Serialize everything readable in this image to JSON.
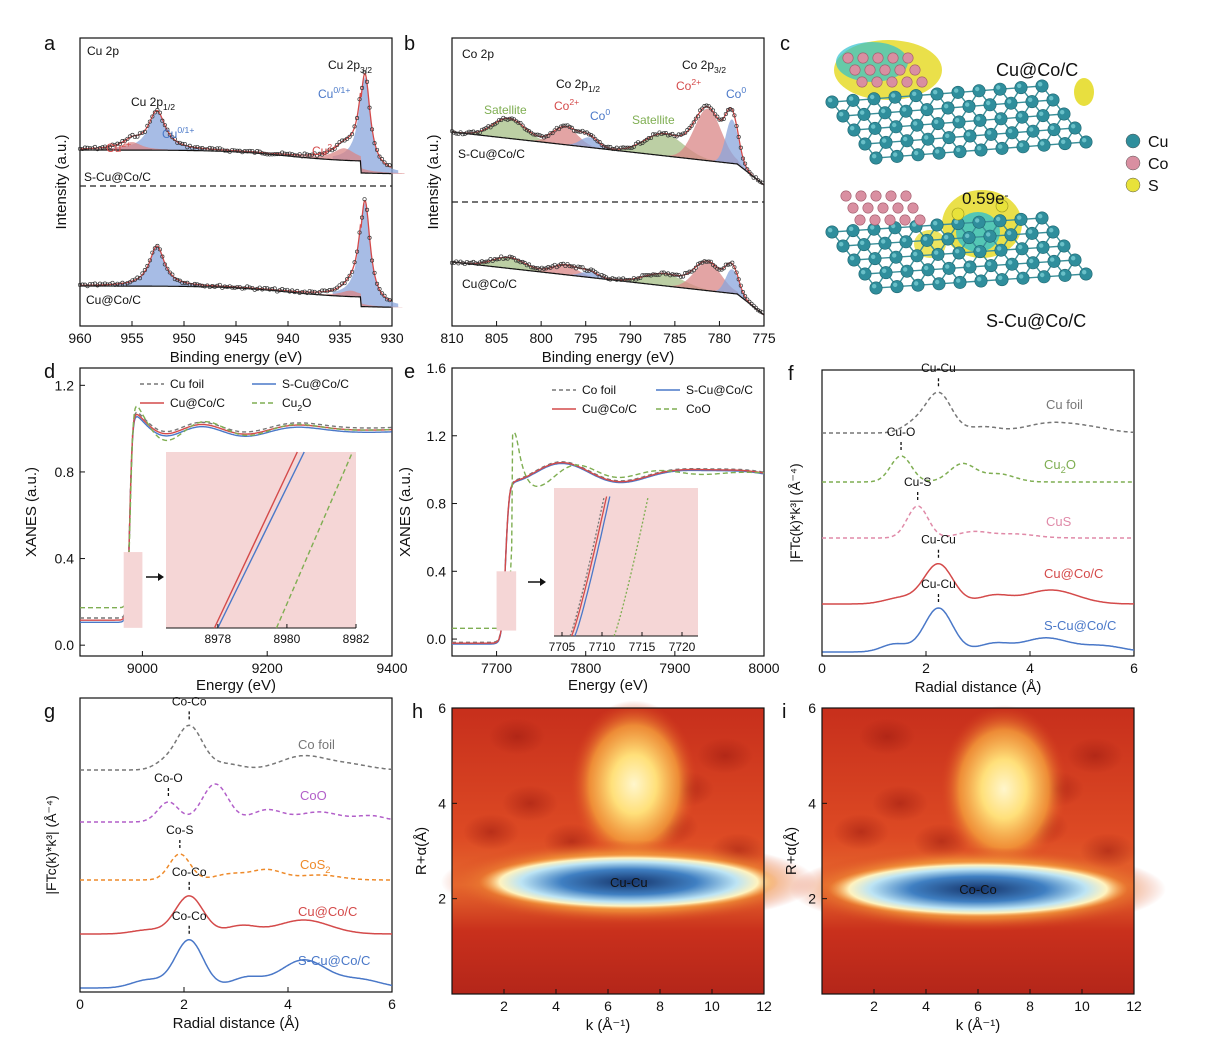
{
  "colors": {
    "red": "#d44a4a",
    "blue": "#4a78c8",
    "green": "#7fae52",
    "gray": "#777777",
    "purple": "#b25fc9",
    "pink": "#e08aa8",
    "orange": "#ee8a2a",
    "redfill": "#d98686",
    "bluefill": "#8aa6dc",
    "greenfill": "#a6bf86",
    "inset": "#f5d6d6"
  },
  "chart_data": [
    {
      "panel": "a",
      "type": "line",
      "corner_label": "Cu 2p",
      "xlabel": "Binding energy (eV)",
      "ylabel": "Intensity (a.u.)",
      "xlim": [
        960,
        930
      ],
      "xticks": [
        960,
        955,
        950,
        945,
        940,
        935,
        930
      ],
      "series": [
        {
          "name": "S-Cu@Co/C"
        },
        {
          "name": "Cu@Co/C"
        }
      ],
      "peaks": [
        {
          "label": "Cu 2p",
          "sub": "1/2"
        },
        {
          "label": "Cu 2p",
          "sub": "3/2"
        },
        {
          "label": "Cu",
          "sup": "0/1+"
        },
        {
          "label": "Cu",
          "sup": "0/1+"
        },
        {
          "label": "Cu",
          "sup": "2+"
        },
        {
          "label": "Cu",
          "sup": "2+"
        }
      ]
    },
    {
      "panel": "b",
      "type": "line",
      "corner_label": "Co 2p",
      "xlabel": "Binding energy (eV)",
      "ylabel": "Intensity (a.u.)",
      "xlim": [
        810,
        775
      ],
      "xticks": [
        810,
        805,
        800,
        795,
        790,
        785,
        780,
        775
      ],
      "series": [
        {
          "name": "S-Cu@Co/C"
        },
        {
          "name": "Cu@Co/C"
        }
      ],
      "peaks": [
        {
          "label": "Co 2p",
          "sub": "1/2"
        },
        {
          "label": "Co 2p",
          "sub": "3/2"
        },
        {
          "label": "Satellite"
        },
        {
          "label": "Satellite"
        },
        {
          "label": "Co",
          "sup": "2+"
        },
        {
          "label": "Co",
          "sup": "2+"
        },
        {
          "label": "Co",
          "sup": "0"
        },
        {
          "label": "Co",
          "sup": "0"
        }
      ]
    },
    {
      "panel": "c",
      "type": "diagram",
      "structures": [
        "Cu@Co/C",
        "S-Cu@Co/C"
      ],
      "legend": [
        "Cu",
        "Co",
        "S"
      ],
      "charge_transfer": "0.59e",
      "charge_sup": "-"
    },
    {
      "panel": "d",
      "type": "line",
      "xlabel": "Energy (eV)",
      "ylabel": "XANES (a.u.)",
      "xlim": [
        8900,
        9400
      ],
      "ylim": [
        -0.05,
        1.28
      ],
      "xticks": [
        9000,
        9200,
        9400
      ],
      "yticks": [
        0.0,
        0.4,
        0.8,
        1.2
      ],
      "series": [
        {
          "name": "Cu foil",
          "style": "dashed"
        },
        {
          "name": "S-Cu@Co/C"
        },
        {
          "name": "Cu@Co/C"
        },
        {
          "name": "Cu",
          "sub": "2",
          "tail": "O",
          "style": "dashed"
        }
      ],
      "inset": {
        "xlim": [
          8976.5,
          8982
        ],
        "xticks": [
          8978,
          8980,
          8982
        ]
      }
    },
    {
      "panel": "e",
      "type": "line",
      "xlabel": "Energy (eV)",
      "ylabel": "XANES (a.u.)",
      "xlim": [
        7650,
        8000
      ],
      "ylim": [
        -0.1,
        1.6
      ],
      "xticks": [
        7700,
        7800,
        7900,
        8000
      ],
      "yticks": [
        0.0,
        0.4,
        0.8,
        1.2,
        1.6
      ],
      "series": [
        {
          "name": "Co foil",
          "style": "dashed"
        },
        {
          "name": "S-Cu@Co/C"
        },
        {
          "name": "Cu@Co/C"
        },
        {
          "name": "CoO",
          "style": "dashed"
        }
      ],
      "inset": {
        "xlim": [
          7704,
          7722
        ],
        "xticks": [
          7705,
          7710,
          7715,
          7720
        ]
      }
    },
    {
      "panel": "f",
      "type": "line",
      "xlabel": "Radial distance (Å)",
      "ylabel": "|FTc(k)*k³| (Å⁻⁴)",
      "xlim": [
        0,
        6
      ],
      "xticks": [
        0,
        2,
        4,
        6
      ],
      "series": [
        {
          "name": "Cu foil",
          "bond": "Cu-Cu",
          "bond_r": 2.24
        },
        {
          "name": "Cu",
          "sub": "2",
          "tail": "O",
          "bond": "Cu-O",
          "bond_r": 1.52
        },
        {
          "name": "CuS",
          "bond": "Cu-S",
          "bond_r": 1.84
        },
        {
          "name": "Cu@Co/C",
          "bond": "Cu-Cu",
          "bond_r": 2.24
        },
        {
          "name": "S-Cu@Co/C",
          "bond": "Cu-Cu",
          "bond_r": 2.24
        }
      ]
    },
    {
      "panel": "g",
      "type": "line",
      "xlabel": "Radial distance (Å)",
      "ylabel": "|FTc(k)*k³| (Å⁻⁴)",
      "xlim": [
        0,
        6
      ],
      "xticks": [
        0,
        2,
        4,
        6
      ],
      "series": [
        {
          "name": "Co foil",
          "bond": "Co-Co",
          "bond_r": 2.1
        },
        {
          "name": "CoO",
          "bond": "Co-O",
          "bond_r": 1.7
        },
        {
          "name": "CoS",
          "sub": "2",
          "bond": "Co-S",
          "bond_r": 1.92
        },
        {
          "name": "Cu@Co/C",
          "bond": "Co-Co",
          "bond_r": 2.1
        },
        {
          "name": "S-Cu@Co/C",
          "bond": "Co-Co",
          "bond_r": 2.1
        }
      ]
    },
    {
      "panel": "h",
      "type": "heatmap",
      "xlabel": "k (Å⁻¹)",
      "ylabel": "R+α(Å)",
      "xlim": [
        0,
        12
      ],
      "ylim": [
        0,
        6
      ],
      "xticks": [
        2,
        4,
        6,
        8,
        10,
        12
      ],
      "yticks": [
        2,
        4,
        6
      ],
      "annotation": "Cu-Cu",
      "min_center": {
        "k": 6.8,
        "R": 2.35
      },
      "max_center": {
        "k": 7.0,
        "R": 4.4
      }
    },
    {
      "panel": "i",
      "type": "heatmap",
      "xlabel": "k (Å⁻¹)",
      "ylabel": "R+α(Å)",
      "xlim": [
        0,
        12
      ],
      "ylim": [
        0,
        6
      ],
      "xticks": [
        2,
        4,
        6,
        8,
        10,
        12
      ],
      "yticks": [
        2,
        4,
        6
      ],
      "annotation": "Co-Co",
      "min_center": {
        "k": 6.0,
        "R": 2.2
      },
      "max_center": {
        "k": 7.0,
        "R": 4.3
      }
    }
  ]
}
